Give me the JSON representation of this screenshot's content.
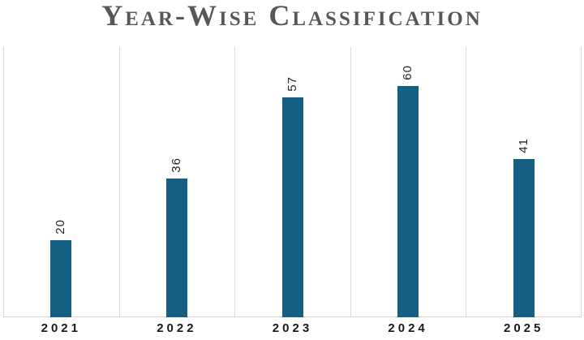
{
  "chart_data": {
    "type": "bar",
    "title": "Year-Wise Classification",
    "categories": [
      "2021",
      "2022",
      "2023",
      "2024",
      "2025"
    ],
    "values": [
      20,
      36,
      57,
      60,
      41
    ],
    "data_labels": [
      "20",
      "36",
      "57",
      "60",
      "41"
    ],
    "data_label_orientation": "rotated-90-bottom-to-top",
    "xlabel": "",
    "ylabel": "",
    "ylim": [
      0,
      70
    ],
    "grid": "vertical-category-separators",
    "legend": "none",
    "colors": {
      "bar": "#156082",
      "gridline": "#dadada",
      "axis_line": "#d2d2d2",
      "title": "#57575b",
      "data_label": "#262626",
      "axis_label": "#191919",
      "background": "#ffffff"
    }
  }
}
